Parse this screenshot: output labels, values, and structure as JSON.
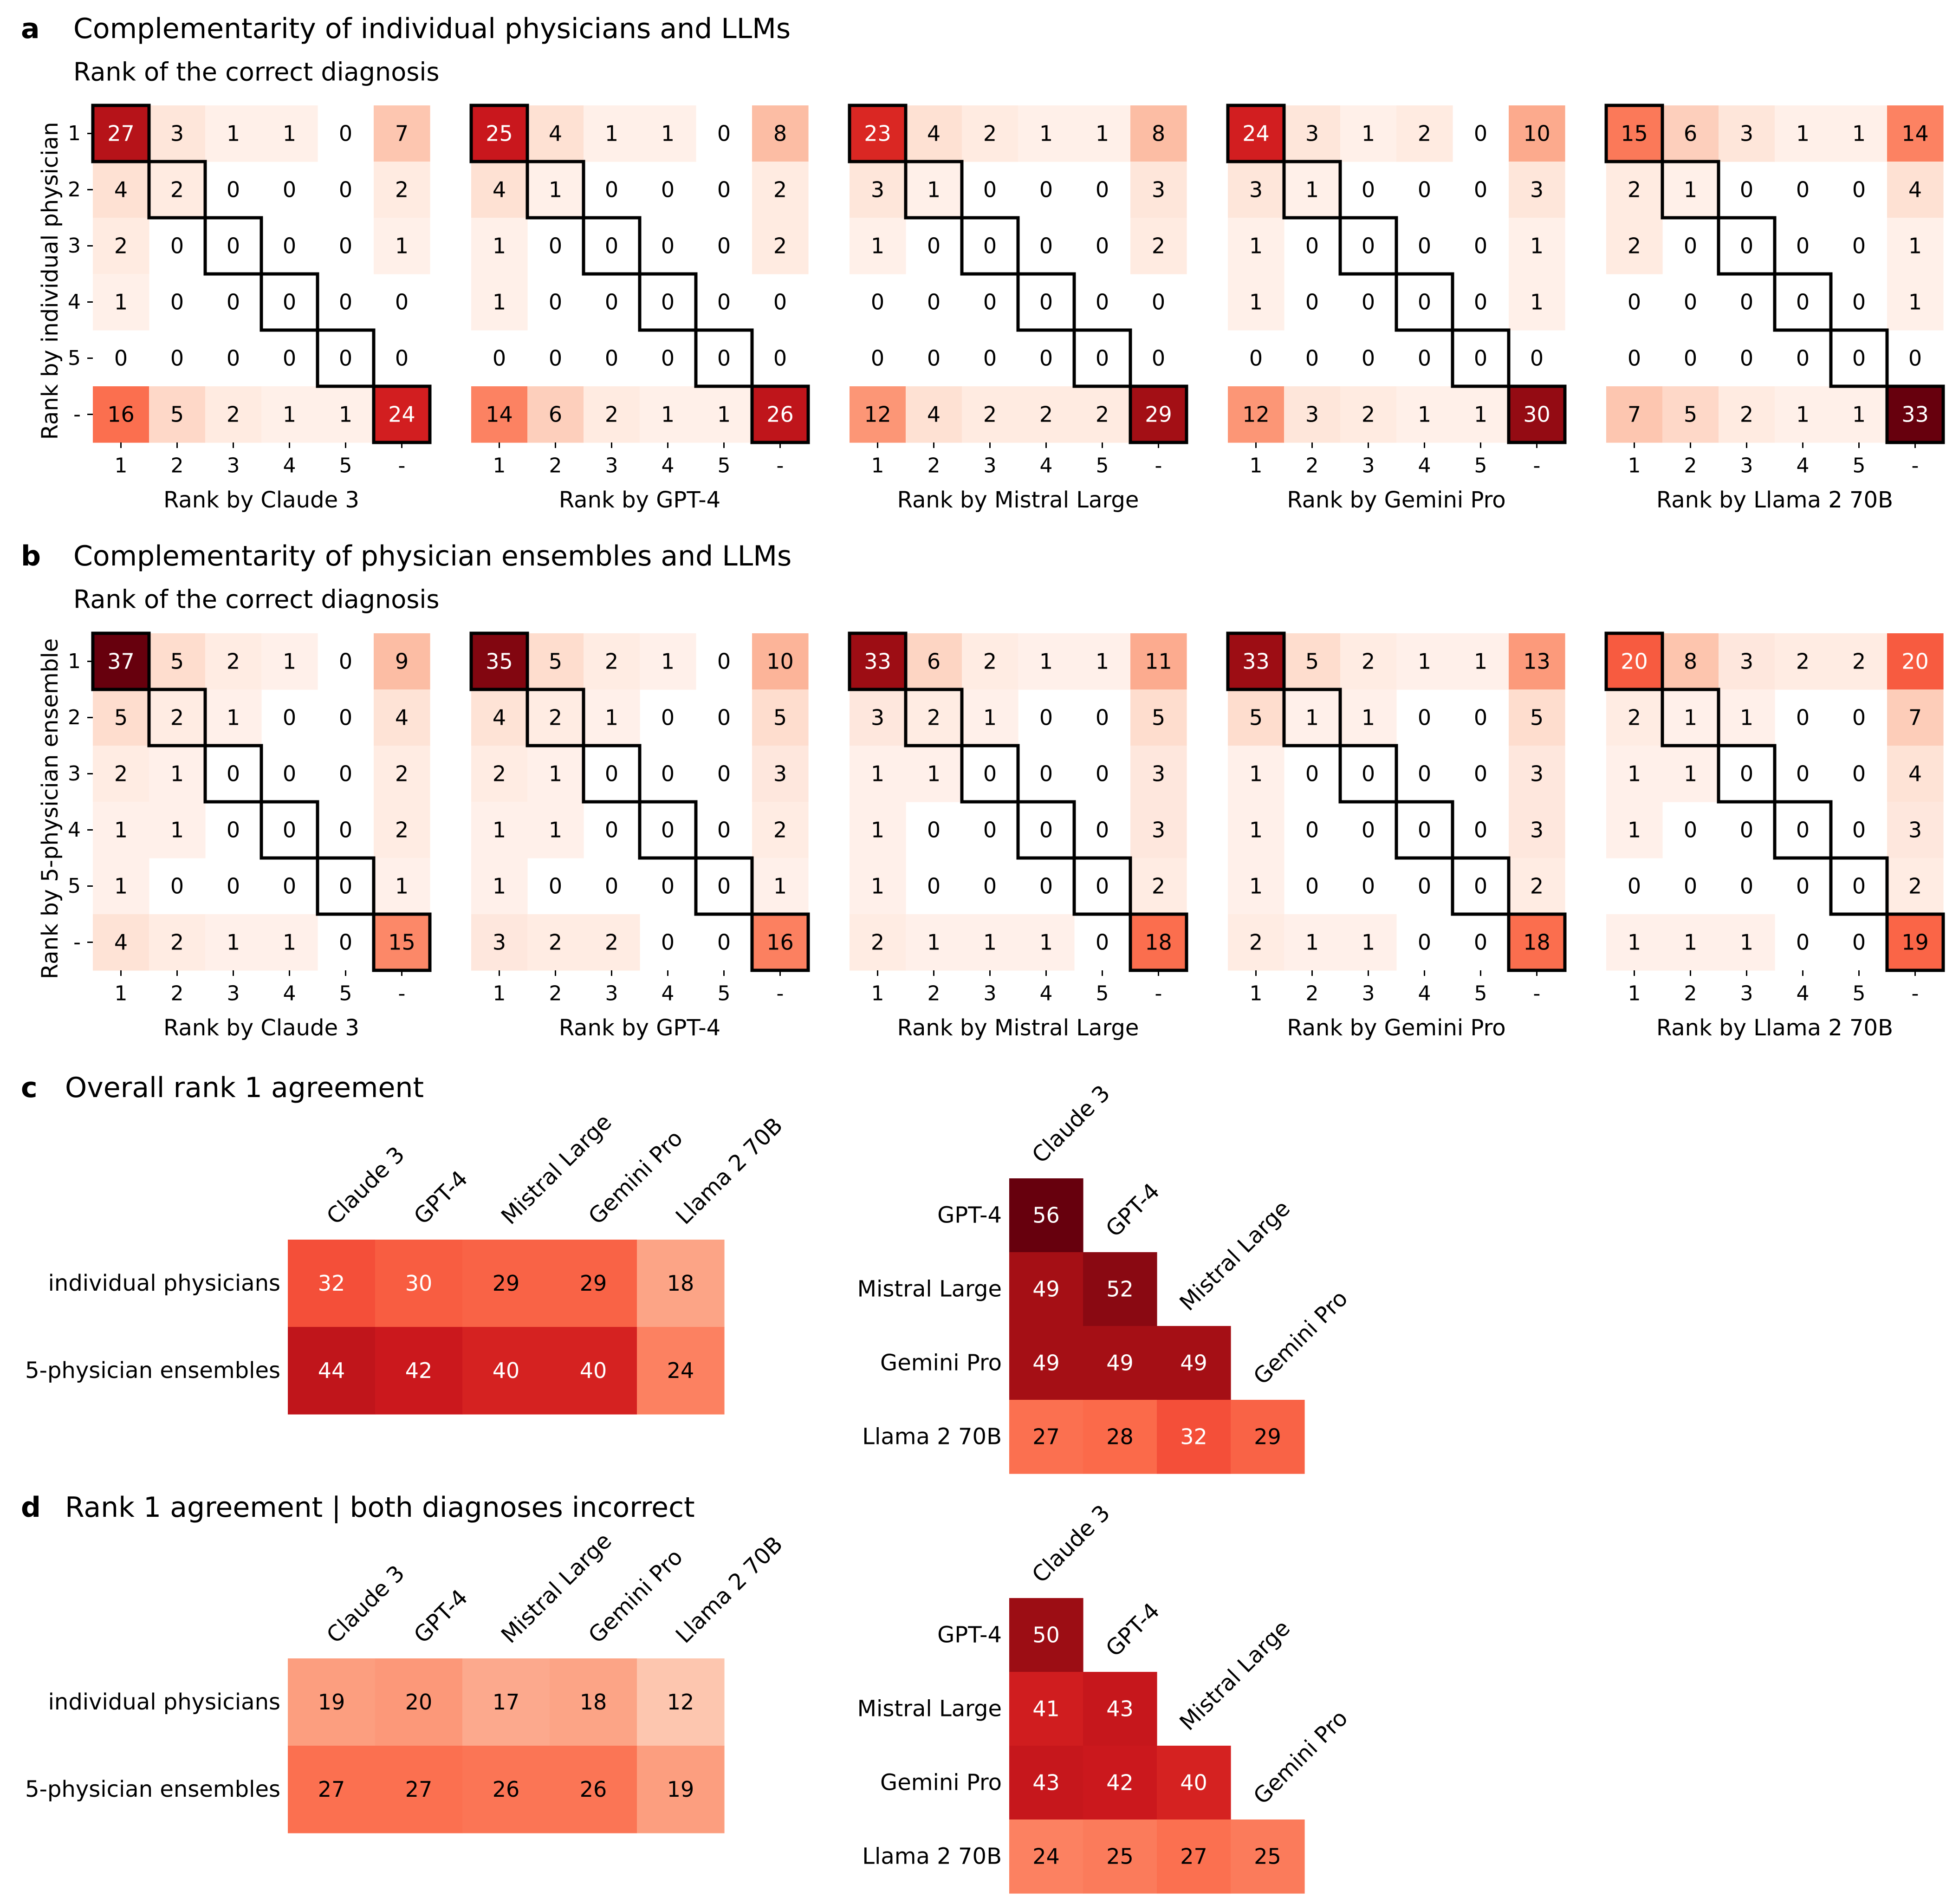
{
  "chart_data": [
    {
      "id": "a",
      "type": "heatmap",
      "panel_letter": "a",
      "title": "Complementarity of individual physicians and LLMs",
      "subtitle": "Rank of the correct diagnosis",
      "ylabel": "Rank by individual physician",
      "tick_labels": [
        "1",
        "2",
        "3",
        "4",
        "5",
        "-"
      ],
      "color_range": [
        0,
        33
      ],
      "matrices": [
        {
          "xlabel": "Rank by Claude 3",
          "values": [
            [
              27,
              3,
              1,
              1,
              0,
              7
            ],
            [
              4,
              2,
              0,
              0,
              0,
              2
            ],
            [
              2,
              0,
              0,
              0,
              0,
              1
            ],
            [
              1,
              0,
              0,
              0,
              0,
              0
            ],
            [
              0,
              0,
              0,
              0,
              0,
              0
            ],
            [
              16,
              5,
              2,
              1,
              1,
              24
            ]
          ]
        },
        {
          "xlabel": "Rank by GPT-4",
          "values": [
            [
              25,
              4,
              1,
              1,
              0,
              8
            ],
            [
              4,
              1,
              0,
              0,
              0,
              2
            ],
            [
              1,
              0,
              0,
              0,
              0,
              2
            ],
            [
              1,
              0,
              0,
              0,
              0,
              0
            ],
            [
              0,
              0,
              0,
              0,
              0,
              0
            ],
            [
              14,
              6,
              2,
              1,
              1,
              26
            ]
          ]
        },
        {
          "xlabel": "Rank by Mistral Large",
          "values": [
            [
              23,
              4,
              2,
              1,
              1,
              8
            ],
            [
              3,
              1,
              0,
              0,
              0,
              3
            ],
            [
              1,
              0,
              0,
              0,
              0,
              2
            ],
            [
              0,
              0,
              0,
              0,
              0,
              0
            ],
            [
              0,
              0,
              0,
              0,
              0,
              0
            ],
            [
              12,
              4,
              2,
              2,
              2,
              29
            ]
          ]
        },
        {
          "xlabel": "Rank by Gemini Pro",
          "values": [
            [
              24,
              3,
              1,
              2,
              0,
              10
            ],
            [
              3,
              1,
              0,
              0,
              0,
              3
            ],
            [
              1,
              0,
              0,
              0,
              0,
              1
            ],
            [
              1,
              0,
              0,
              0,
              0,
              1
            ],
            [
              0,
              0,
              0,
              0,
              0,
              0
            ],
            [
              12,
              3,
              2,
              1,
              1,
              30
            ]
          ]
        },
        {
          "xlabel": "Rank by Llama 2 70B",
          "values": [
            [
              15,
              6,
              3,
              1,
              1,
              14
            ],
            [
              2,
              1,
              0,
              0,
              0,
              4
            ],
            [
              2,
              0,
              0,
              0,
              0,
              1
            ],
            [
              0,
              0,
              0,
              0,
              0,
              1
            ],
            [
              0,
              0,
              0,
              0,
              0,
              0
            ],
            [
              7,
              5,
              2,
              1,
              1,
              33
            ]
          ]
        }
      ]
    },
    {
      "id": "b",
      "type": "heatmap",
      "panel_letter": "b",
      "title": "Complementarity of physician ensembles and LLMs",
      "subtitle": "Rank of the correct diagnosis",
      "ylabel": "Rank by 5-physician ensemble",
      "tick_labels": [
        "1",
        "2",
        "3",
        "4",
        "5",
        "-"
      ],
      "color_range": [
        0,
        37
      ],
      "matrices": [
        {
          "xlabel": "Rank by Claude 3",
          "values": [
            [
              37,
              5,
              2,
              1,
              0,
              9
            ],
            [
              5,
              2,
              1,
              0,
              0,
              4
            ],
            [
              2,
              1,
              0,
              0,
              0,
              2
            ],
            [
              1,
              1,
              0,
              0,
              0,
              2
            ],
            [
              1,
              0,
              0,
              0,
              0,
              1
            ],
            [
              4,
              2,
              1,
              1,
              0,
              15
            ]
          ]
        },
        {
          "xlabel": "Rank by GPT-4",
          "values": [
            [
              35,
              5,
              2,
              1,
              0,
              10
            ],
            [
              4,
              2,
              1,
              0,
              0,
              5
            ],
            [
              2,
              1,
              0,
              0,
              0,
              3
            ],
            [
              1,
              1,
              0,
              0,
              0,
              2
            ],
            [
              1,
              0,
              0,
              0,
              0,
              1
            ],
            [
              3,
              2,
              2,
              0,
              0,
              16
            ]
          ]
        },
        {
          "xlabel": "Rank by Mistral Large",
          "values": [
            [
              33,
              6,
              2,
              1,
              1,
              11
            ],
            [
              3,
              2,
              1,
              0,
              0,
              5
            ],
            [
              1,
              1,
              0,
              0,
              0,
              3
            ],
            [
              1,
              0,
              0,
              0,
              0,
              3
            ],
            [
              1,
              0,
              0,
              0,
              0,
              2
            ],
            [
              2,
              1,
              1,
              1,
              0,
              18
            ]
          ]
        },
        {
          "xlabel": "Rank by Gemini Pro",
          "values": [
            [
              33,
              5,
              2,
              1,
              1,
              13
            ],
            [
              5,
              1,
              1,
              0,
              0,
              5
            ],
            [
              1,
              0,
              0,
              0,
              0,
              3
            ],
            [
              1,
              0,
              0,
              0,
              0,
              3
            ],
            [
              1,
              0,
              0,
              0,
              0,
              2
            ],
            [
              2,
              1,
              1,
              0,
              0,
              18
            ]
          ]
        },
        {
          "xlabel": "Rank by Llama 2 70B",
          "values": [
            [
              20,
              8,
              3,
              2,
              2,
              20
            ],
            [
              2,
              1,
              1,
              0,
              0,
              7
            ],
            [
              1,
              1,
              0,
              0,
              0,
              4
            ],
            [
              1,
              0,
              0,
              0,
              0,
              3
            ],
            [
              0,
              0,
              0,
              0,
              0,
              2
            ],
            [
              1,
              1,
              1,
              0,
              0,
              19
            ]
          ]
        }
      ]
    },
    {
      "id": "c",
      "type": "heatmap",
      "panel_letter": "c",
      "title": "Overall rank 1 agreement",
      "color_range": [
        0,
        56
      ],
      "rect": {
        "row_labels": [
          "individual physicians",
          "5-physician ensembles"
        ],
        "col_labels": [
          "Claude 3",
          "GPT-4",
          "Mistral Large",
          "Gemini Pro",
          "Llama 2 70B"
        ],
        "values": [
          [
            32,
            30,
            29,
            29,
            18
          ],
          [
            44,
            42,
            40,
            40,
            24
          ]
        ]
      },
      "tri": {
        "row_labels": [
          "GPT-4",
          "Mistral Large",
          "Gemini Pro",
          "Llama 2 70B"
        ],
        "col_labels": [
          "Claude 3",
          "GPT-4",
          "Mistral Large",
          "Gemini Pro"
        ],
        "values": [
          [
            56
          ],
          [
            49,
            52
          ],
          [
            49,
            49,
            49
          ],
          [
            27,
            28,
            32,
            29
          ]
        ]
      }
    },
    {
      "id": "d",
      "type": "heatmap",
      "panel_letter": "d",
      "title": "Rank 1 agreement | both diagnoses incorrect",
      "color_range": [
        0,
        56
      ],
      "rect": {
        "row_labels": [
          "individual physicians",
          "5-physician ensembles"
        ],
        "col_labels": [
          "Claude 3",
          "GPT-4",
          "Mistral Large",
          "Gemini Pro",
          "Llama 2 70B"
        ],
        "values": [
          [
            19,
            20,
            17,
            18,
            12
          ],
          [
            27,
            27,
            26,
            26,
            19
          ]
        ]
      },
      "tri": {
        "row_labels": [
          "GPT-4",
          "Mistral Large",
          "Gemini Pro",
          "Llama 2 70B"
        ],
        "col_labels": [
          "Claude 3",
          "GPT-4",
          "Mistral Large",
          "Gemini Pro"
        ],
        "values": [
          [
            50
          ],
          [
            41,
            43
          ],
          [
            43,
            42,
            40
          ],
          [
            24,
            25,
            27,
            25
          ]
        ]
      }
    }
  ]
}
